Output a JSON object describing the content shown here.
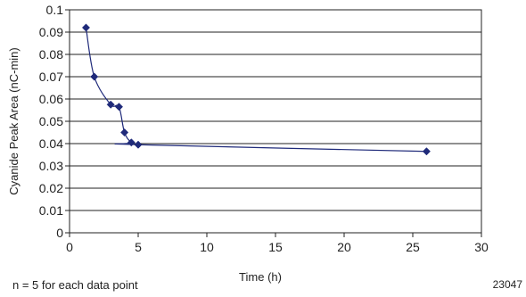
{
  "chart_data": {
    "type": "line",
    "title": "",
    "xlabel": "Time (h)",
    "ylabel": "Cyanide Peak Area (nC-min)",
    "xlim": [
      0,
      30
    ],
    "ylim": [
      0,
      0.1
    ],
    "x_ticks": [
      "0",
      "5",
      "10",
      "15",
      "20",
      "25",
      "30"
    ],
    "y_ticks": [
      "0",
      "0.01",
      "0.02",
      "0.03",
      "0.04",
      "0.05",
      "0.06",
      "0.07",
      "0.08",
      "0.09",
      "0.1"
    ],
    "grid": "horizontal",
    "legend": "none",
    "series": [
      {
        "x": [
          1.2,
          1.8,
          3.0,
          3.6,
          4.0,
          4.5,
          5.0,
          26.0
        ],
        "y": [
          0.092,
          0.07,
          0.0575,
          0.0565,
          0.045,
          0.0405,
          0.0395,
          0.0365
        ],
        "color": "#1f2a7a",
        "marker": "diamond"
      }
    ]
  },
  "footnote": "n = 5 for each data point",
  "figure_id": "23047"
}
